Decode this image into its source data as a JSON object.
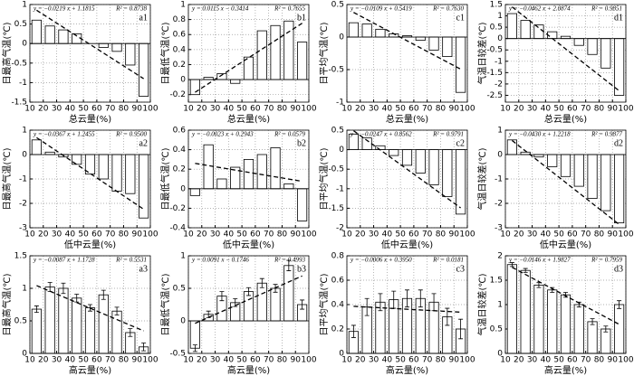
{
  "chart_data": [
    {
      "type": "bar",
      "label": "a1",
      "ylabel": "日最高气温(℃)",
      "xlabel": "总云量(%)",
      "equation": "y = −0.0219 x + 1.1815",
      "r2": "R² = 0.8738",
      "fit": {
        "slope": -0.0219,
        "intercept": 1.1815
      },
      "x": [
        15,
        25,
        35,
        45,
        55,
        65,
        75,
        85,
        95
      ],
      "values": [
        0.6,
        0.45,
        0.35,
        0.25,
        0.0,
        -0.1,
        -0.2,
        -0.55,
        -1.35
      ],
      "xlim": [
        10,
        100
      ],
      "xticks": [
        10,
        20,
        30,
        40,
        50,
        60,
        70,
        80,
        90,
        100
      ],
      "ylim": [
        -1.5,
        1
      ],
      "yticks": [
        -1.5,
        -1,
        -0.5,
        0,
        0.5,
        1
      ],
      "grid": true
    },
    {
      "type": "bar",
      "label": "b1",
      "ylabel": "日最低气温(℃)",
      "xlabel": "总云量(%)",
      "equation": "y = 0.0115 x − 0.3414",
      "r2": "R² = 0.7655",
      "fit": {
        "slope": 0.0115,
        "intercept": -0.3414
      },
      "x": [
        15,
        25,
        35,
        45,
        55,
        65,
        75,
        85,
        95
      ],
      "values": [
        -0.2,
        0.03,
        0.08,
        -0.05,
        0.3,
        0.65,
        0.72,
        0.78,
        0.5
      ],
      "xlim": [
        10,
        100
      ],
      "xticks": [
        10,
        20,
        30,
        40,
        50,
        60,
        70,
        80,
        90,
        100
      ],
      "ylim": [
        -0.3,
        1
      ],
      "yticks": [
        -0.2,
        0,
        0.2,
        0.4,
        0.6,
        0.8,
        1
      ],
      "grid": true
    },
    {
      "type": "bar",
      "label": "c1",
      "ylabel": "日平均气温(℃)",
      "xlabel": "总云量(%)",
      "equation": "y = −0.0109 x + 0.5419",
      "r2": "R² = 0.7630",
      "fit": {
        "slope": -0.0109,
        "intercept": 0.5419
      },
      "x": [
        15,
        25,
        35,
        45,
        55,
        65,
        75,
        85,
        95
      ],
      "values": [
        0.22,
        0.2,
        0.12,
        0.05,
        0.02,
        -0.05,
        -0.2,
        -0.3,
        -0.85
      ],
      "xlim": [
        10,
        100
      ],
      "xticks": [
        10,
        20,
        30,
        40,
        50,
        60,
        70,
        80,
        90,
        100
      ],
      "ylim": [
        -1,
        0.5
      ],
      "yticks": [
        -1,
        -0.5,
        0,
        0.5
      ],
      "grid": true
    },
    {
      "type": "bar",
      "label": "d1",
      "ylabel": "气温日较差(℃)",
      "xlabel": "总云量(%)",
      "equation": "y = −0.0462 x + 2.0874",
      "r2": "R² = 0.9851",
      "fit": {
        "slope": -0.0462,
        "intercept": 2.0874
      },
      "x": [
        15,
        25,
        35,
        45,
        55,
        65,
        75,
        85,
        95
      ],
      "values": [
        1.1,
        0.8,
        0.6,
        0.3,
        0.1,
        -0.3,
        -0.7,
        -1.3,
        -2.5
      ],
      "xlim": [
        10,
        100
      ],
      "xticks": [
        10,
        20,
        30,
        40,
        50,
        60,
        70,
        80,
        90,
        100
      ],
      "ylim": [
        -2.8,
        1.5
      ],
      "yticks": [
        -2.5,
        -2,
        -1.5,
        -1,
        -0.5,
        0,
        0.5,
        1,
        1.5
      ],
      "grid": true
    },
    {
      "type": "bar",
      "label": "a2",
      "ylabel": "日最高气温(℃)",
      "xlabel": "低中云量(%)",
      "equation": "y = −0.0367 x + 1.2455",
      "r2": "R² = 0.9500",
      "fit": {
        "slope": -0.0367,
        "intercept": 1.2455
      },
      "x": [
        15,
        25,
        35,
        45,
        55,
        65,
        75,
        85,
        95
      ],
      "values": [
        0.6,
        0.1,
        -0.1,
        -0.4,
        -0.8,
        -1.0,
        -1.5,
        -1.6,
        -2.6
      ],
      "xlim": [
        10,
        100
      ],
      "xticks": [
        10,
        20,
        30,
        40,
        50,
        60,
        70,
        80,
        90,
        100
      ],
      "ylim": [
        -3,
        1
      ],
      "yticks": [
        -3,
        -2,
        -1,
        0,
        1
      ],
      "grid": true
    },
    {
      "type": "bar",
      "label": "b2",
      "ylabel": "日最低气温(℃)",
      "xlabel": "低中云量(%)",
      "equation": "y = −0.0023 x + 0.2943",
      "r2": "R² = 0.0579",
      "fit": {
        "slope": -0.0023,
        "intercept": 0.2943
      },
      "x": [
        15,
        25,
        35,
        45,
        55,
        65,
        75,
        85,
        95
      ],
      "values": [
        -0.07,
        0.45,
        0.1,
        0.22,
        0.3,
        0.35,
        0.42,
        0.05,
        -0.33
      ],
      "xlim": [
        10,
        100
      ],
      "xticks": [
        10,
        20,
        30,
        40,
        50,
        60,
        70,
        80,
        90,
        100
      ],
      "ylim": [
        -0.4,
        0.6
      ],
      "yticks": [
        -0.4,
        -0.2,
        0,
        0.2,
        0.4,
        0.6
      ],
      "grid": true
    },
    {
      "type": "bar",
      "label": "c2",
      "ylabel": "日平均气温(℃)",
      "xlabel": "低中云量(%)",
      "equation": "y = −0.0247 x + 0.8562",
      "r2": "R² = 0.9791",
      "fit": {
        "slope": -0.0247,
        "intercept": 0.8562
      },
      "x": [
        15,
        25,
        35,
        45,
        55,
        65,
        75,
        85,
        95
      ],
      "values": [
        0.4,
        0.3,
        0.1,
        -0.15,
        -0.4,
        -0.6,
        -0.9,
        -1.2,
        -1.65
      ],
      "xlim": [
        10,
        100
      ],
      "xticks": [
        10,
        20,
        30,
        40,
        50,
        60,
        70,
        80,
        90,
        100
      ],
      "ylim": [
        -2,
        0.5
      ],
      "yticks": [
        -2,
        -1.5,
        -1,
        -0.5,
        0,
        0.5
      ],
      "grid": true
    },
    {
      "type": "bar",
      "label": "d2",
      "ylabel": "气温日较差(℃)",
      "xlabel": "低中云量(%)",
      "equation": "y = −0.0430 x + 1.2218",
      "r2": "R² = 0.9877",
      "fit": {
        "slope": -0.043,
        "intercept": 1.2218
      },
      "x": [
        15,
        25,
        35,
        45,
        55,
        65,
        75,
        85,
        95
      ],
      "values": [
        0.6,
        0.1,
        -0.1,
        -0.5,
        -0.9,
        -1.3,
        -1.8,
        -2.3,
        -2.8
      ],
      "xlim": [
        10,
        100
      ],
      "xticks": [
        10,
        20,
        30,
        40,
        50,
        60,
        70,
        80,
        90,
        100
      ],
      "ylim": [
        -3,
        1
      ],
      "yticks": [
        -3,
        -2,
        -1,
        0,
        1
      ],
      "grid": true
    },
    {
      "type": "bar",
      "label": "a3",
      "ylabel": "日最高气温(℃)",
      "xlabel": "高云量(%)",
      "equation": "y = −0.0087 x + 1.1728",
      "r2": "R² = 0.5531",
      "fit": {
        "slope": -0.0087,
        "intercept": 1.1728
      },
      "x": [
        15,
        25,
        35,
        45,
        55,
        65,
        75,
        85,
        95
      ],
      "values": [
        0.68,
        1.02,
        1.0,
        0.85,
        0.7,
        0.9,
        0.65,
        0.32,
        0.1
      ],
      "errors": [
        0.05,
        0.07,
        0.08,
        0.06,
        0.05,
        0.07,
        0.06,
        0.06,
        0.06
      ],
      "xlim": [
        10,
        100
      ],
      "xticks": [
        10,
        20,
        30,
        40,
        50,
        60,
        70,
        80,
        90,
        100
      ],
      "ylim": [
        0,
        1.5
      ],
      "yticks": [
        0,
        0.5,
        1,
        1.5
      ],
      "grid": true
    },
    {
      "type": "bar",
      "label": "b3",
      "ylabel": "日最低气温(℃)",
      "xlabel": "高云量(%)",
      "equation": "y = 0.0091 x − 0.1746",
      "r2": "R² = 0.4993",
      "fit": {
        "slope": 0.0091,
        "intercept": -0.1746
      },
      "x": [
        15,
        25,
        35,
        45,
        55,
        65,
        75,
        85,
        95
      ],
      "values": [
        -0.42,
        0.1,
        0.38,
        0.28,
        0.45,
        0.58,
        0.5,
        0.85,
        0.25
      ],
      "errors": [
        0.05,
        0.05,
        0.07,
        0.06,
        0.06,
        0.07,
        0.06,
        0.08,
        0.07
      ],
      "xlim": [
        10,
        100
      ],
      "xticks": [
        10,
        20,
        30,
        40,
        50,
        60,
        70,
        80,
        90,
        100
      ],
      "ylim": [
        -0.5,
        1
      ],
      "yticks": [
        -0.5,
        0,
        0.5,
        1
      ],
      "grid": true
    },
    {
      "type": "bar",
      "label": "c3",
      "ylabel": "日平均气温(℃)",
      "xlabel": "高云量(%)",
      "equation": "y = −0.0006 x + 0.3950",
      "r2": "R² = 0.0181",
      "fit": {
        "slope": -0.0006,
        "intercept": 0.395
      },
      "x": [
        15,
        25,
        35,
        45,
        55,
        65,
        75,
        85,
        95
      ],
      "values": [
        0.18,
        0.38,
        0.42,
        0.44,
        0.45,
        0.45,
        0.42,
        0.3,
        0.2
      ],
      "errors": [
        0.05,
        0.07,
        0.07,
        0.07,
        0.07,
        0.07,
        0.07,
        0.07,
        0.08
      ],
      "xlim": [
        10,
        100
      ],
      "xticks": [
        10,
        20,
        30,
        40,
        50,
        60,
        70,
        80,
        90,
        100
      ],
      "ylim": [
        0,
        0.8
      ],
      "yticks": [
        0,
        0.2,
        0.4,
        0.6,
        0.8
      ],
      "grid": true
    },
    {
      "type": "bar",
      "label": "d3",
      "ylabel": "气温日较差(℃)",
      "xlabel": "高云量(%)",
      "equation": "y = −0.0146 x + 1.9827",
      "r2": "R² = 0.7959",
      "fit": {
        "slope": -0.0146,
        "intercept": 1.9827
      },
      "x": [
        15,
        25,
        35,
        45,
        55,
        65,
        75,
        85,
        95
      ],
      "values": [
        1.82,
        1.7,
        1.4,
        1.3,
        1.2,
        1.0,
        0.65,
        0.5,
        1.0
      ],
      "errors": [
        0.04,
        0.04,
        0.05,
        0.05,
        0.05,
        0.05,
        0.06,
        0.06,
        0.08
      ],
      "xlim": [
        10,
        100
      ],
      "xticks": [
        10,
        20,
        30,
        40,
        50,
        60,
        70,
        80,
        90,
        100
      ],
      "ylim": [
        0,
        2
      ],
      "yticks": [
        0,
        0.5,
        1,
        1.5,
        2
      ],
      "grid": true
    }
  ]
}
